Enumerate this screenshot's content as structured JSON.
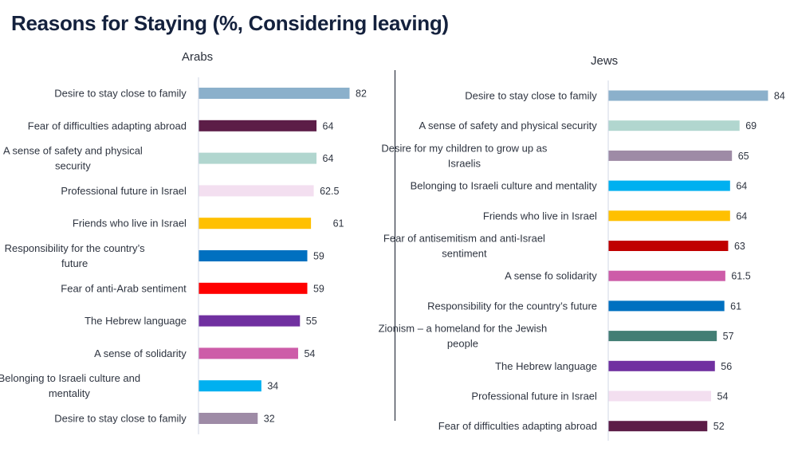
{
  "header": {
    "title": "Reasons for Staying (%, Considering leaving)"
  },
  "chart_data": [
    {
      "type": "bar",
      "orientation": "horizontal",
      "title": "Arabs",
      "xlabel": "",
      "ylabel": "",
      "xlim": [
        0,
        100
      ],
      "grid": false,
      "categories": [
        "Desire to stay close to family",
        "Fear of difficulties adapting abroad",
        "A sense of safety and physical security",
        "Professional future in Israel",
        "Friends who live in Israel",
        "Responsibility for the country’s future",
        "Fear of anti-Arab sentiment",
        "The Hebrew language",
        "A sense of solidarity",
        "Belonging to Israeli culture and mentality",
        "Desire to stay close to family"
      ],
      "label_lines": [
        [
          "Desire to stay close to family"
        ],
        [
          "Fear of difficulties adapting abroad"
        ],
        [
          "A sense of safety and physical",
          "security"
        ],
        [
          "Professional future in Israel"
        ],
        [
          "Friends who live in Israel"
        ],
        [
          "Responsibility for the country’s",
          "future"
        ],
        [
          "Fear of anti-Arab sentiment"
        ],
        [
          "The Hebrew language"
        ],
        [
          "A sense of solidarity"
        ],
        [
          "Belonging to Israeli culture and",
          "mentality"
        ],
        [
          "Desire to stay close to family"
        ]
      ],
      "values": [
        82,
        64,
        64,
        62.5,
        61,
        59,
        59,
        55,
        54,
        34,
        32
      ],
      "value_labels": [
        "82",
        "64",
        "64",
        "62.5",
        "61",
        "59",
        "59",
        "55",
        "54",
        "34",
        "32"
      ],
      "colors": [
        "#8bb0cb",
        "#5c1d47",
        "#b1d6cf",
        "#f3dff0",
        "#ffc000",
        "#0070c0",
        "#ff0000",
        "#7030a0",
        "#cd5ca8",
        "#00b0f0",
        "#9e8ba6"
      ]
    },
    {
      "type": "bar",
      "orientation": "horizontal",
      "title": "Jews",
      "xlabel": "",
      "ylabel": "",
      "xlim": [
        0,
        100
      ],
      "grid": false,
      "categories": [
        "Desire to stay close to family",
        "A sense of safety and physical security",
        "Desire for my children to grow up as Israelis",
        "Belonging to Israeli culture and mentality",
        "Friends who live in Israel",
        "Fear of antisemitism and anti-Israel sentiment",
        "A sense fo solidarity",
        "Responsibility for the country’s future",
        "Zionism – a homeland for the Jewish people",
        "The Hebrew language",
        "Professional future in Israel",
        "Fear of difficulties adapting abroad"
      ],
      "label_lines": [
        [
          "Desire to stay close to family"
        ],
        [
          "A sense of safety and physical security"
        ],
        [
          "Desire for my children to grow up as",
          "Israelis"
        ],
        [
          "Belonging to Israeli culture and mentality"
        ],
        [
          "Friends who live in Israel"
        ],
        [
          "Fear of antisemitism and anti-Israel",
          "sentiment"
        ],
        [
          "A sense fo solidarity"
        ],
        [
          "Responsibility for the country’s future"
        ],
        [
          "Zionism – a homeland for the Jewish",
          "people"
        ],
        [
          "The Hebrew language"
        ],
        [
          "Professional future in Israel"
        ],
        [
          "Fear of difficulties adapting abroad"
        ]
      ],
      "values": [
        84,
        69,
        65,
        64,
        64,
        63,
        61.5,
        61,
        57,
        56,
        54,
        52
      ],
      "value_labels": [
        "84",
        "69",
        "65",
        "64",
        "64",
        "63",
        "61.5",
        "61",
        "57",
        "56",
        "54",
        "52"
      ],
      "colors": [
        "#8bb0cb",
        "#b1d6cf",
        "#9e8ba6",
        "#00b0f0",
        "#ffc000",
        "#c00000",
        "#cd5ca8",
        "#0070c0",
        "#437e74",
        "#7030a0",
        "#f3dff0",
        "#5c1d47"
      ]
    }
  ]
}
